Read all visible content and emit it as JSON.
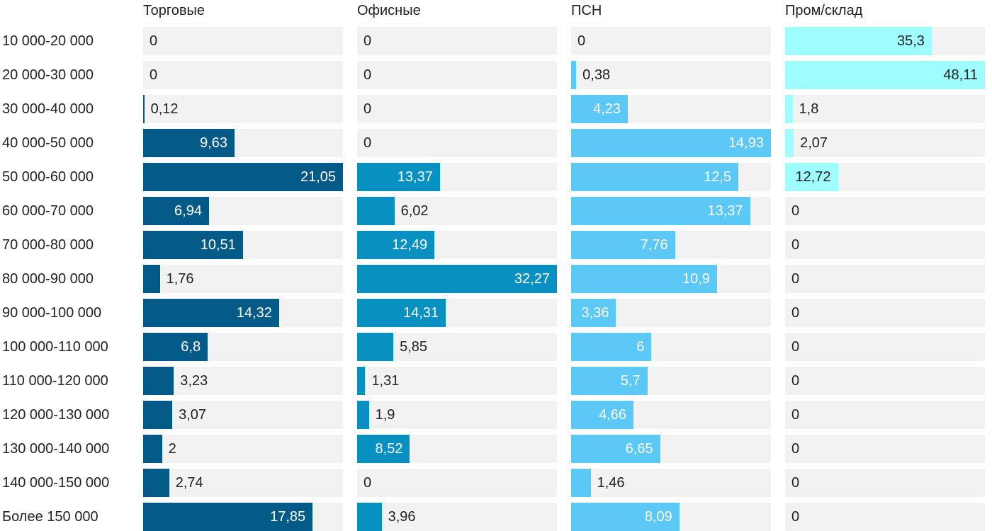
{
  "chart_data": {
    "type": "bar",
    "orientation": "horizontal",
    "layout": "small-multiples",
    "categories": [
      "10 000-20 000",
      "20 000-30 000",
      "30 000-40 000",
      "40 000-50 000",
      "50 000-60 000",
      "60 000-70 000",
      "70 000-80 000",
      "80 000-90 000",
      "90 000-100 000",
      "100 000-110 000",
      "110 000-120 000",
      "120 000-130 000",
      "130 000-140 000",
      "140 000-150 000",
      "Более 150 000"
    ],
    "series": [
      {
        "name": "Торговые",
        "color": "#045a86",
        "label_color": "#ffffff",
        "values": [
          0,
          0,
          0.12,
          9.63,
          21.05,
          6.94,
          10.51,
          1.76,
          14.32,
          6.8,
          3.23,
          3.07,
          2,
          2.74,
          17.85
        ]
      },
      {
        "name": "Офисные",
        "color": "#0891c0",
        "label_color": "#ffffff",
        "values": [
          0,
          0,
          0,
          0,
          13.37,
          6.02,
          12.49,
          32.27,
          14.31,
          5.85,
          1.31,
          1.9,
          8.52,
          0,
          3.96
        ]
      },
      {
        "name": "ПСН",
        "color": "#5bc8f5",
        "label_color": "#ffffff",
        "values": [
          0,
          0.38,
          4.23,
          14.93,
          12.5,
          13.37,
          7.76,
          10.9,
          3.36,
          6,
          5.7,
          4.66,
          6.65,
          1.46,
          8.09
        ]
      },
      {
        "name": "Пром/склад",
        "color": "#9ffcff",
        "label_color": "#222222",
        "values": [
          35.3,
          48.11,
          1.8,
          2.07,
          12.72,
          0,
          0,
          0,
          0,
          0,
          0,
          0,
          0,
          0,
          0
        ]
      }
    ],
    "decimal_separator": ",",
    "xlim": "per-panel max"
  }
}
